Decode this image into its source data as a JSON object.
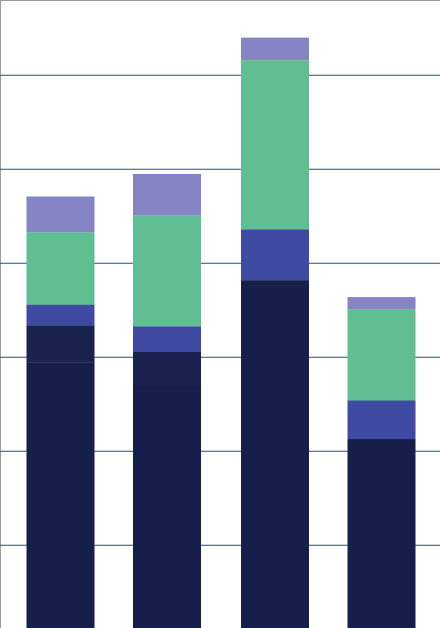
{
  "chart_data": {
    "type": "stacked_bar",
    "categories": [
      null,
      null,
      null,
      null
    ],
    "series": [
      {
        "color": "#161f4b",
        "values": [
          29.4,
          27.1,
          38.2,
          21.3
        ]
      },
      {
        "color": "#1a2250",
        "values": [
          4.0,
          3.5,
          0,
          0
        ]
      },
      {
        "color": "#3f4ba3",
        "values": [
          2.2,
          2.7,
          5.4,
          4.1
        ]
      },
      {
        "color": "#5fbf92",
        "values": [
          7.7,
          11.8,
          18.0,
          9.7
        ]
      },
      {
        "color": "#8584c4",
        "values": [
          3.8,
          4.4,
          2.4,
          1.3
        ]
      }
    ],
    "ylim": [
      1.2,
      68
    ],
    "yticks": [
      10,
      20,
      30,
      40,
      50,
      60
    ],
    "grid": true,
    "grid_color": "#2d4a82"
  }
}
